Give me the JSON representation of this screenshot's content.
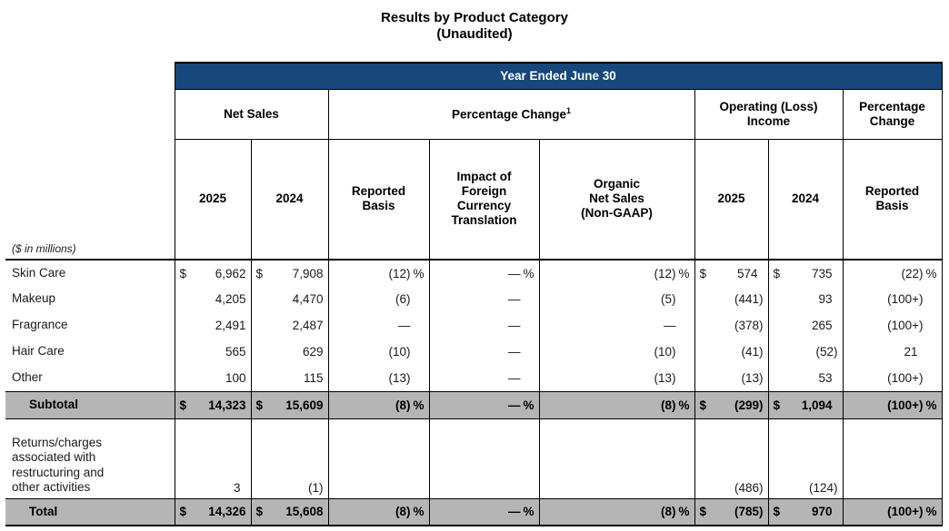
{
  "title": {
    "line1": "Results by Product Category",
    "line2": "(Unaudited)"
  },
  "band_header": "Year Ended June 30",
  "column_groups": [
    {
      "label": "Net Sales",
      "sup": ""
    },
    {
      "label": "Percentage Change",
      "sup": "1"
    },
    {
      "label": "Operating (Loss)\nIncome",
      "sup": ""
    },
    {
      "label": "Percentage\nChange",
      "sup": ""
    }
  ],
  "sub_headers": [
    "2025",
    "2024",
    "Reported\nBasis",
    "Impact of\nForeign\nCurrency\nTranslation",
    "Organic\nNet Sales\n(Non-GAAP)",
    "2025",
    "2024",
    "Reported\nBasis"
  ],
  "units_note": "($ in millions)",
  "rows": [
    {
      "label": "Skin Care",
      "type": "data",
      "cells": [
        {
          "p": "$",
          "v": "6,962"
        },
        {
          "p": "$",
          "v": "7,908"
        },
        {
          "v": "(12)",
          "s": "%"
        },
        {
          "v": "—",
          "s": "%"
        },
        {
          "v": "(12)",
          "s": "%"
        },
        {
          "p": "$",
          "v": "574",
          "pad": true
        },
        {
          "p": "$",
          "v": "735",
          "pad": true
        },
        {
          "v": "(22)",
          "s": "%"
        }
      ]
    },
    {
      "label": "Makeup",
      "type": "data",
      "cells": [
        {
          "v": "4,205"
        },
        {
          "v": "4,470"
        },
        {
          "v": "(6)"
        },
        {
          "v": "—"
        },
        {
          "v": "(5)"
        },
        {
          "v": "(441)"
        },
        {
          "v": "93",
          "pad": true
        },
        {
          "v": "(100+)"
        }
      ]
    },
    {
      "label": "Fragrance",
      "type": "data",
      "cells": [
        {
          "v": "2,491"
        },
        {
          "v": "2,487"
        },
        {
          "v": "—"
        },
        {
          "v": "—"
        },
        {
          "v": "—"
        },
        {
          "v": "(378)"
        },
        {
          "v": "265",
          "pad": true
        },
        {
          "v": "(100+)"
        }
      ]
    },
    {
      "label": "Hair Care",
      "type": "data",
      "cells": [
        {
          "v": "565"
        },
        {
          "v": "629"
        },
        {
          "v": "(10)"
        },
        {
          "v": "—"
        },
        {
          "v": "(10)"
        },
        {
          "v": "(41)"
        },
        {
          "v": "(52)"
        },
        {
          "v": "21",
          "pad": true
        }
      ]
    },
    {
      "label": "Other",
      "type": "data",
      "cells": [
        {
          "v": "100"
        },
        {
          "v": "115"
        },
        {
          "v": "(13)"
        },
        {
          "v": "—"
        },
        {
          "v": "(13)"
        },
        {
          "v": "(13)"
        },
        {
          "v": "53",
          "pad": true
        },
        {
          "v": "(100+)"
        }
      ]
    },
    {
      "label": "Subtotal",
      "type": "subtotal",
      "cells": [
        {
          "p": "$",
          "v": "14,323"
        },
        {
          "p": "$",
          "v": "15,609"
        },
        {
          "v": "(8)",
          "s": "%"
        },
        {
          "v": "—",
          "s": "%"
        },
        {
          "v": "(8)",
          "s": "%"
        },
        {
          "p": "$",
          "v": "(299)"
        },
        {
          "p": "$",
          "v": "1,094",
          "pad": true
        },
        {
          "v": "(100+)",
          "s": "%"
        }
      ]
    },
    {
      "label": "Returns/charges\nassociated with\nrestructuring and\nother activities",
      "type": "tall",
      "cells": [
        {
          "v": "3",
          "pad": true
        },
        {
          "v": "(1)"
        },
        {
          "v": ""
        },
        {
          "v": ""
        },
        {
          "v": ""
        },
        {
          "v": "(486)"
        },
        {
          "v": "(124)"
        },
        {
          "v": ""
        }
      ]
    },
    {
      "label": "Total",
      "type": "total",
      "cells": [
        {
          "p": "$",
          "v": "14,326"
        },
        {
          "p": "$",
          "v": "15,608"
        },
        {
          "v": "(8)",
          "s": "%"
        },
        {
          "v": "—",
          "s": "%"
        },
        {
          "v": "(8)",
          "s": "%"
        },
        {
          "p": "$",
          "v": "(785)"
        },
        {
          "p": "$",
          "v": "970",
          "pad": true
        },
        {
          "v": "(100+)",
          "s": "%"
        }
      ]
    }
  ],
  "colors": {
    "band_background": "#17477B",
    "band_text": "#FFFFFF",
    "summary_row_background": "#B5B5B5",
    "border": "#000000"
  }
}
